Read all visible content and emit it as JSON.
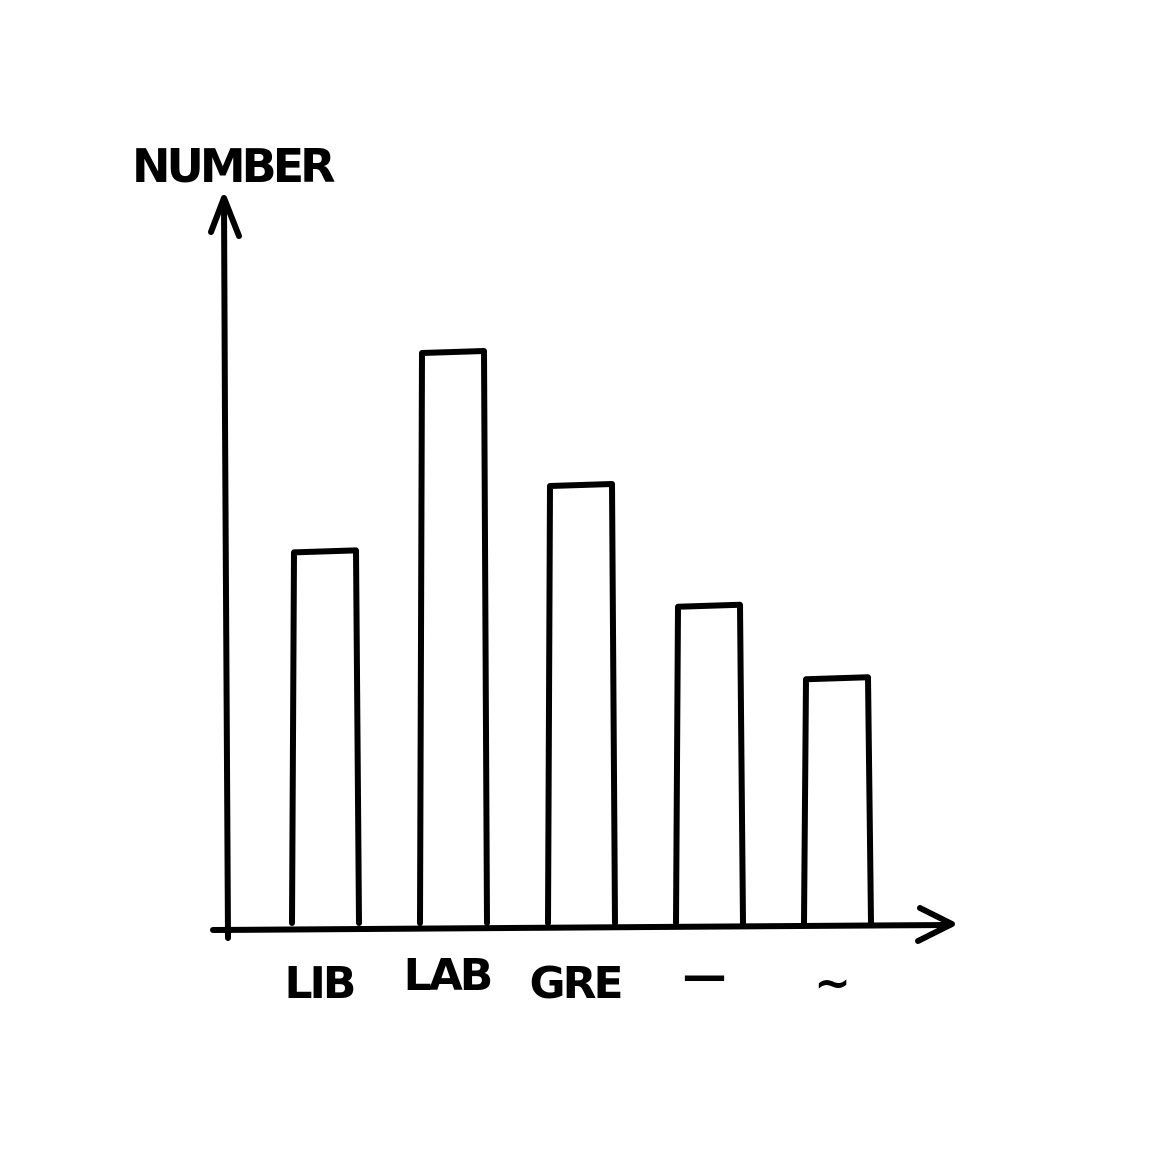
{
  "chart_data": {
    "type": "bar",
    "categories": [
      "LIB",
      "LAB",
      "GRE",
      "—",
      "~"
    ],
    "values": [
      62,
      95,
      73,
      53,
      41
    ],
    "ylabel": "NUMBER",
    "xlabel": "",
    "title": "",
    "ylim": [
      0,
      120
    ],
    "grid": false,
    "legend": "none",
    "style": "hand-drawn outline",
    "colors": {
      "ink": "#000000",
      "background": "#ffffff"
    }
  }
}
